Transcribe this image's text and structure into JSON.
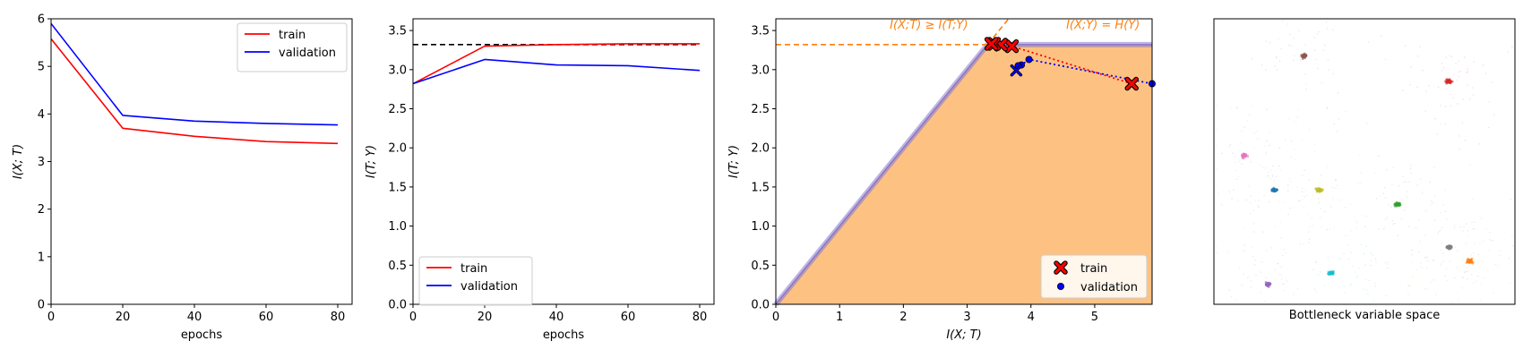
{
  "colors": {
    "train": "#ff0000",
    "validation": "#0000ff",
    "orange": "#ff7f0e",
    "feasible": "#fdc282",
    "boundary": "#8877cc"
  },
  "chart_data": [
    {
      "type": "line",
      "xlabel": "epochs",
      "ylabel": "I(X; T)",
      "xlim": [
        0,
        84
      ],
      "ylim": [
        0,
        6
      ],
      "xticks": [
        "0",
        "20",
        "40",
        "60",
        "80"
      ],
      "yticks": [
        "0",
        "1",
        "2",
        "3",
        "4",
        "5",
        "6"
      ],
      "legend_position": "top-right",
      "x": [
        0,
        20,
        40,
        60,
        80
      ],
      "series": [
        {
          "name": "train",
          "values": [
            5.58,
            3.7,
            3.53,
            3.42,
            3.38
          ]
        },
        {
          "name": "validation",
          "values": [
            5.9,
            3.97,
            3.85,
            3.8,
            3.77
          ]
        }
      ]
    },
    {
      "type": "line",
      "xlabel": "epochs",
      "ylabel": "I(T; Y)",
      "xlim": [
        0,
        84
      ],
      "ylim": [
        0,
        3.65
      ],
      "xticks": [
        "0",
        "20",
        "40",
        "60",
        "80"
      ],
      "yticks": [
        "0.0",
        "0.5",
        "1.0",
        "1.5",
        "2.0",
        "2.5",
        "3.0",
        "3.5"
      ],
      "legend_position": "bottom-left",
      "reference_line": 3.32,
      "x": [
        0,
        20,
        40,
        60,
        80
      ],
      "series": [
        {
          "name": "train",
          "values": [
            2.82,
            3.3,
            3.32,
            3.33,
            3.33
          ]
        },
        {
          "name": "validation",
          "values": [
            2.82,
            3.13,
            3.06,
            3.05,
            2.99
          ]
        }
      ]
    },
    {
      "type": "scatter",
      "xlabel": "I(X; T)",
      "ylabel": "I(T; Y)",
      "xlim": [
        0,
        5.9
      ],
      "ylim": [
        0,
        3.65
      ],
      "xticks": [
        "0",
        "1",
        "2",
        "3",
        "4",
        "5"
      ],
      "yticks": [
        "0.0",
        "0.5",
        "1.0",
        "1.5",
        "2.0",
        "2.5",
        "3.0",
        "3.5"
      ],
      "legend_position": "bottom-right",
      "hy": 3.32,
      "annotations": [
        "I(X;T) ≥ I(T;Y)",
        "I(X;Y) = H(Y)"
      ],
      "series": [
        {
          "name": "train",
          "points": [
            [
              5.58,
              2.82
            ],
            [
              3.7,
              3.3
            ],
            [
              3.53,
              3.32
            ],
            [
              3.42,
              3.33
            ],
            [
              3.38,
              3.33
            ]
          ]
        },
        {
          "name": "validation",
          "points": [
            [
              5.9,
              2.82
            ],
            [
              3.97,
              3.13
            ],
            [
              3.85,
              3.06
            ],
            [
              3.8,
              3.05
            ],
            [
              3.77,
              2.99
            ]
          ]
        }
      ]
    },
    {
      "type": "scatter",
      "xlabel": "Bottleneck variable space",
      "clusters": [
        {
          "x": 0.3,
          "y": 0.13,
          "color": "#8c564b"
        },
        {
          "x": 0.78,
          "y": 0.22,
          "color": "#d62728"
        },
        {
          "x": 0.1,
          "y": 0.48,
          "color": "#e377c2"
        },
        {
          "x": 0.2,
          "y": 0.6,
          "color": "#1f77b4"
        },
        {
          "x": 0.35,
          "y": 0.6,
          "color": "#bcbd22"
        },
        {
          "x": 0.61,
          "y": 0.65,
          "color": "#2ca02c"
        },
        {
          "x": 0.78,
          "y": 0.8,
          "color": "#7f7f7f"
        },
        {
          "x": 0.85,
          "y": 0.85,
          "color": "#ff7f0e"
        },
        {
          "x": 0.39,
          "y": 0.89,
          "color": "#17becf"
        },
        {
          "x": 0.18,
          "y": 0.93,
          "color": "#9467bd"
        }
      ]
    }
  ]
}
